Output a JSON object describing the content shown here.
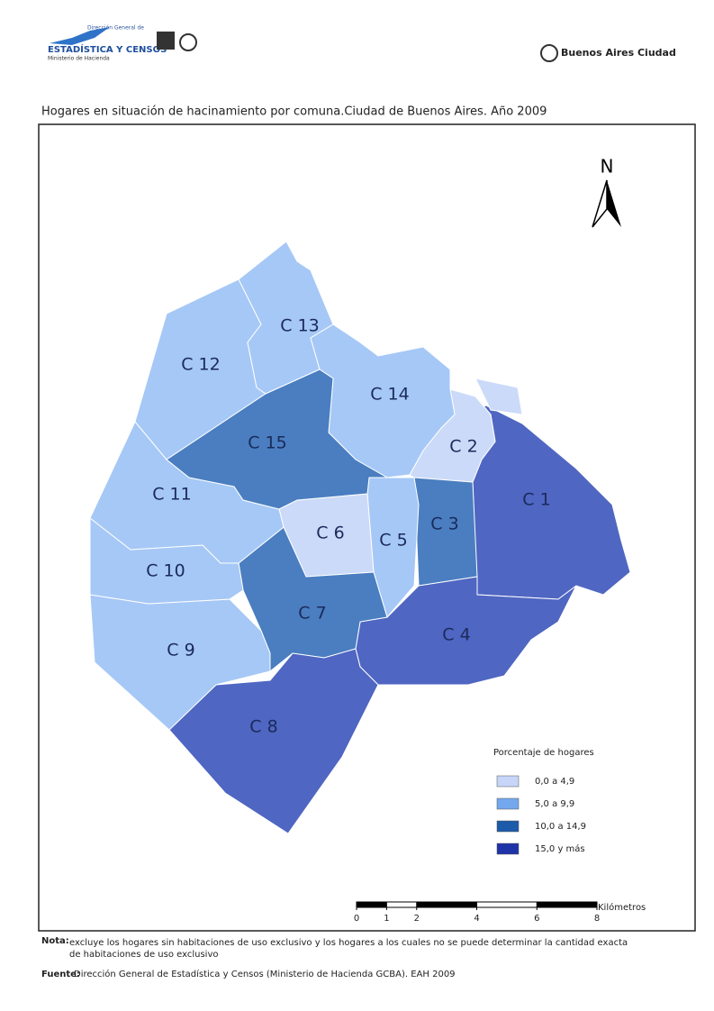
{
  "header": {
    "logo_small": "Dirección General de",
    "logo_main": "ESTADÍSTICA Y CENSOS",
    "logo_sub": "Ministerio de Hacienda",
    "city": "Buenos Aires Ciudad"
  },
  "title": "Hogares en situación de hacinamiento por comuna.Ciudad de Buenos Aires. Año 2009",
  "north": "N",
  "comunas": [
    {
      "label": "C 1",
      "color": "#4f66c2"
    },
    {
      "label": "C 2",
      "color": "#cbdaf8"
    },
    {
      "label": "C 3",
      "color": "#4a7ec0"
    },
    {
      "label": "C 4",
      "color": "#4f66c2"
    },
    {
      "label": "C 5",
      "color": "#a6c8f6"
    },
    {
      "label": "C 6",
      "color": "#cbdaf8"
    },
    {
      "label": "C 7",
      "color": "#4a7ec0"
    },
    {
      "label": "C 8",
      "color": "#4f66c2"
    },
    {
      "label": "C 9",
      "color": "#a6c8f6"
    },
    {
      "label": "C 10",
      "color": "#a6c8f6"
    },
    {
      "label": "C 11",
      "color": "#a6c8f6"
    },
    {
      "label": "C 12",
      "color": "#a6c8f6"
    },
    {
      "label": "C 13",
      "color": "#a6c8f6"
    },
    {
      "label": "C 14",
      "color": "#a6c8f6"
    },
    {
      "label": "C 15",
      "color": "#4a7ec0"
    }
  ],
  "legend": {
    "title": "Porcentaje de hogares",
    "items": [
      {
        "label": "0,0 a 4,9",
        "color": "#c6d5f8"
      },
      {
        "label": "5,0 a 9,9",
        "color": "#74a8ee"
      },
      {
        "label": "10,0 a 14,9",
        "color": "#1c5aaa"
      },
      {
        "label": "15,0 y más",
        "color": "#1f33a8"
      }
    ]
  },
  "scale": {
    "unit": "Kilómetros",
    "ticks": [
      0,
      1,
      2,
      4,
      6,
      8
    ]
  },
  "notes": {
    "nota_label": "Nota:",
    "nota_lines": [
      "excluye los hogares sin habitaciones de uso exclusivo y los hogares a los cuales no se puede determinar la cantidad exacta",
      "de habitaciones de uso exclusivo"
    ],
    "fuente_label": "Fuente:",
    "fuente_text": "Dirección General de Estadística y Censos (Ministerio de Hacienda GCBA).  EAH 2009"
  }
}
